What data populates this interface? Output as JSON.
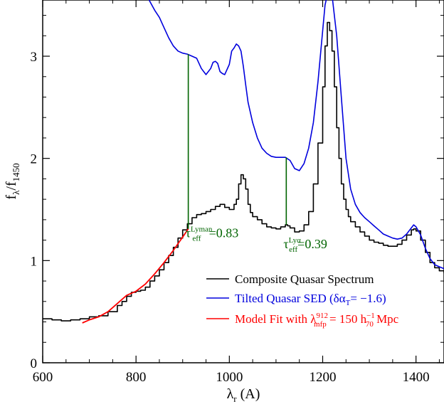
{
  "chart_data": {
    "type": "line",
    "xlabel_main": "λ",
    "xlabel_sub": "r",
    "xlabel_unit": " (A)",
    "ylabel_main": "f",
    "ylabel_sub1": "λ",
    "ylabel_sep": "/f",
    "ylabel_sub2": "1450",
    "xlim": [
      600,
      1460
    ],
    "ylim": [
      0,
      3.55
    ],
    "x_ticks": [
      600,
      800,
      1000,
      1200,
      1400
    ],
    "x_tick_labels": [
      "600",
      "800",
      "1000",
      "1200",
      "1400"
    ],
    "y_ticks": [
      0,
      1,
      2,
      3
    ],
    "y_tick_labels": [
      "0",
      "1",
      "2",
      "3"
    ],
    "grid": false,
    "legend_position": "bottom-right",
    "series": [
      {
        "name": "Composite Quasar Spectrum",
        "color": "#000000",
        "style": "step",
        "x": [
          600,
          620,
          640,
          660,
          680,
          700,
          720,
          740,
          760,
          770,
          780,
          790,
          800,
          810,
          820,
          830,
          840,
          850,
          860,
          870,
          880,
          890,
          900,
          910,
          920,
          930,
          940,
          950,
          960,
          970,
          980,
          990,
          1000,
          1010,
          1015,
          1020,
          1025,
          1030,
          1035,
          1040,
          1045,
          1050,
          1060,
          1070,
          1080,
          1090,
          1100,
          1110,
          1120,
          1125,
          1130,
          1140,
          1150,
          1160,
          1170,
          1180,
          1190,
          1200,
          1205,
          1210,
          1215,
          1220,
          1225,
          1230,
          1235,
          1240,
          1245,
          1250,
          1255,
          1260,
          1270,
          1280,
          1290,
          1300,
          1310,
          1320,
          1330,
          1340,
          1350,
          1360,
          1370,
          1380,
          1390,
          1395,
          1400,
          1410,
          1420,
          1430,
          1440,
          1450,
          1460
        ],
        "y": [
          0.43,
          0.42,
          0.41,
          0.42,
          0.43,
          0.45,
          0.46,
          0.5,
          0.56,
          0.6,
          0.65,
          0.69,
          0.7,
          0.71,
          0.74,
          0.8,
          0.85,
          0.91,
          0.98,
          1.05,
          1.13,
          1.22,
          1.3,
          1.36,
          1.42,
          1.45,
          1.46,
          1.48,
          1.5,
          1.53,
          1.55,
          1.52,
          1.5,
          1.55,
          1.6,
          1.75,
          1.84,
          1.8,
          1.7,
          1.55,
          1.47,
          1.43,
          1.4,
          1.36,
          1.33,
          1.32,
          1.31,
          1.33,
          1.35,
          1.34,
          1.32,
          1.28,
          1.29,
          1.35,
          1.48,
          1.75,
          2.15,
          2.7,
          3.1,
          3.33,
          3.25,
          3.05,
          2.7,
          2.3,
          2.0,
          1.75,
          1.6,
          1.5,
          1.43,
          1.38,
          1.33,
          1.28,
          1.24,
          1.2,
          1.18,
          1.17,
          1.15,
          1.14,
          1.14,
          1.16,
          1.2,
          1.25,
          1.3,
          1.31,
          1.29,
          1.2,
          1.08,
          0.98,
          0.93,
          0.9,
          0.88
        ]
      },
      {
        "name": "Tilted Quasar SED (δα",
        "name_sub": "T",
        "name_tail": "= −1.6)",
        "color": "#0000dd",
        "style": "line",
        "x": [
          828,
          840,
          850,
          860,
          870,
          880,
          890,
          900,
          910,
          920,
          930,
          940,
          950,
          960,
          965,
          970,
          975,
          980,
          985,
          990,
          1000,
          1005,
          1010,
          1015,
          1020,
          1025,
          1030,
          1035,
          1040,
          1050,
          1060,
          1070,
          1080,
          1090,
          1100,
          1110,
          1120,
          1130,
          1140,
          1150,
          1160,
          1170,
          1180,
          1190,
          1200,
          1205,
          1210,
          1215,
          1220,
          1230,
          1240,
          1250,
          1260,
          1270,
          1280,
          1290,
          1300,
          1310,
          1320,
          1330,
          1340,
          1350,
          1360,
          1370,
          1380,
          1390,
          1395,
          1400,
          1410,
          1420,
          1430,
          1440,
          1450,
          1460
        ],
        "y": [
          3.55,
          3.45,
          3.38,
          3.28,
          3.18,
          3.1,
          3.05,
          3.03,
          3.02,
          3.0,
          2.98,
          2.88,
          2.82,
          2.88,
          2.94,
          2.95,
          2.93,
          2.85,
          2.83,
          2.82,
          2.92,
          3.05,
          3.08,
          3.12,
          3.1,
          3.05,
          2.9,
          2.72,
          2.55,
          2.35,
          2.2,
          2.1,
          2.05,
          2.02,
          2.01,
          2.01,
          2.01,
          1.98,
          1.9,
          1.88,
          1.95,
          2.1,
          2.35,
          2.75,
          3.25,
          3.5,
          3.6,
          3.65,
          3.6,
          3.2,
          2.6,
          2.0,
          1.7,
          1.55,
          1.47,
          1.42,
          1.38,
          1.34,
          1.3,
          1.26,
          1.24,
          1.22,
          1.21,
          1.22,
          1.26,
          1.32,
          1.35,
          1.33,
          1.25,
          1.12,
          1.02,
          0.96,
          0.94,
          0.92
        ]
      },
      {
        "name": "Model Fit with λ",
        "name_sup": "912",
        "name_sub": "mfp",
        "name_tail": " = 150 h",
        "name_sup2": "−1",
        "name_sub2": "70",
        "name_tail2": " Mpc",
        "color": "#ff0000",
        "style": "line",
        "x": [
          685,
          700,
          720,
          740,
          760,
          780,
          800,
          820,
          840,
          860,
          880,
          900,
          912
        ],
        "y": [
          0.39,
          0.42,
          0.45,
          0.5,
          0.58,
          0.66,
          0.7,
          0.77,
          0.87,
          0.98,
          1.1,
          1.23,
          1.31
        ]
      }
    ],
    "tau_lines": [
      {
        "x": 912,
        "y_low": 1.31,
        "y_high": 3.02
      },
      {
        "x": 1122,
        "y_low": 1.35,
        "y_high": 2.01
      }
    ],
    "annotations": [
      {
        "main": "τ",
        "sup": "Lyman",
        "sub": "eff",
        "tail": "=0.83",
        "x": 912,
        "y": 1.23
      },
      {
        "main": "τ",
        "sup": "Lyα",
        "sub": "eff",
        "tail": "=0.39",
        "x": 1122,
        "y": 1.12
      }
    ],
    "colors": {
      "annotation": "#006400",
      "axis": "#000000"
    }
  }
}
